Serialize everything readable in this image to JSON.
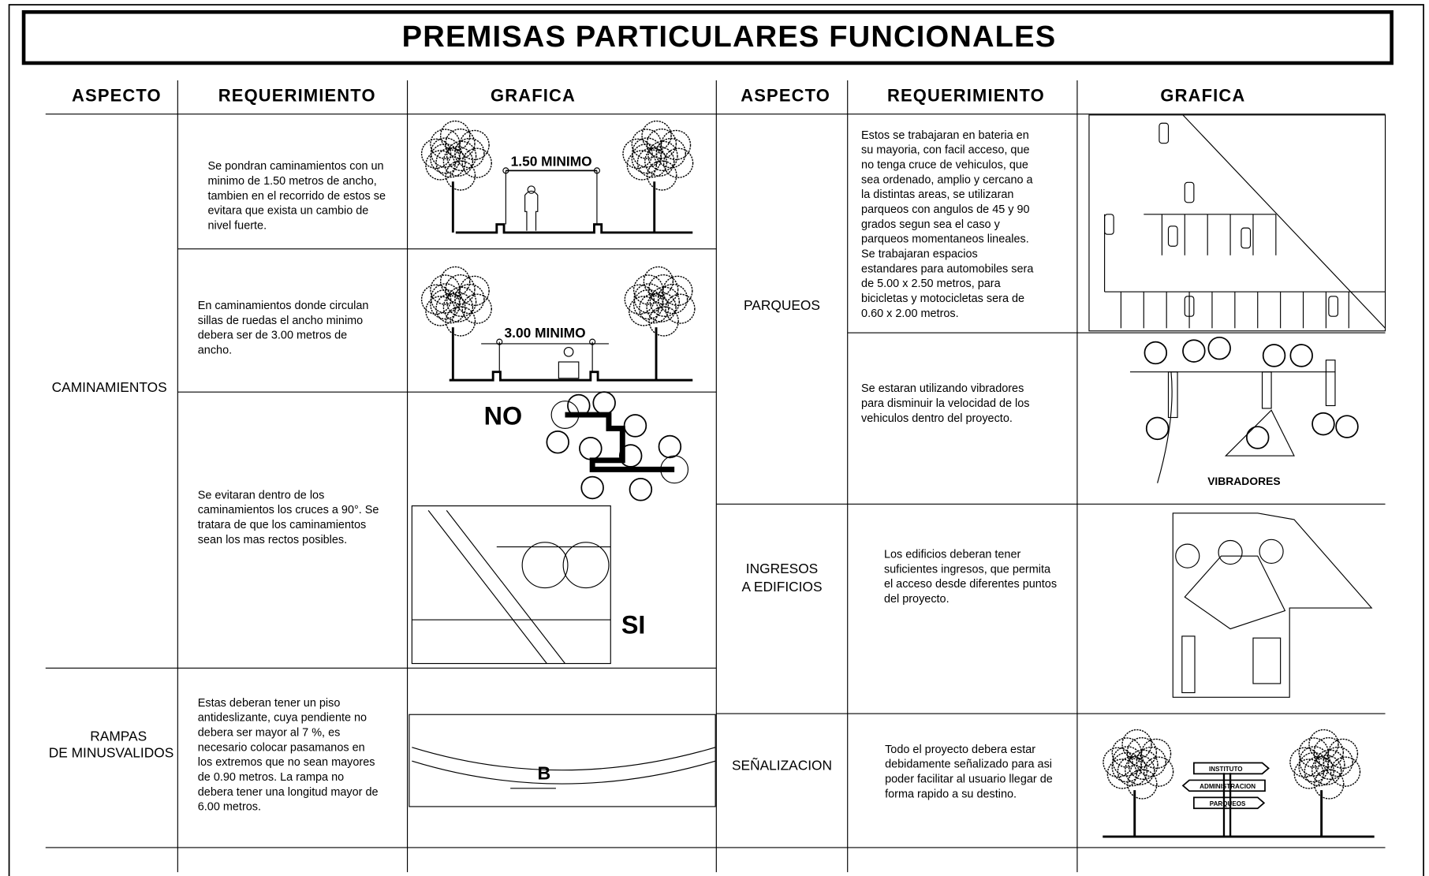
{
  "title": "PREMISAS PARTICULARES FUNCIONALES",
  "left": {
    "headers": [
      "ASPECTO",
      "REQUERIMIENTO",
      "GRAFICA"
    ],
    "groups": [
      {
        "aspect": [
          "CAMINAMIENTOS"
        ],
        "rows": [
          {
            "requirement": [
              "Se pondran caminamientos con un",
              "minimo de 1.50 metros de ancho,",
              "tambien en el recorrido de estos se",
              "evitara que exista un cambio de",
              "nivel fuerte."
            ],
            "graphic_labels": [
              "1.50 MINIMO"
            ]
          },
          {
            "requirement": [
              "En caminamientos donde circulan",
              "sillas de ruedas el ancho minimo",
              "debera ser de 3.00 metros de",
              "ancho."
            ],
            "graphic_labels": [
              "3.00 MINIMO"
            ]
          },
          {
            "requirement": [
              "Se evitaran dentro de los",
              "caminamientos los cruces a 90°. Se",
              "tratara de que los caminamientos",
              "sean los mas rectos posibles."
            ],
            "graphic_labels": [
              "NO",
              "SI"
            ]
          }
        ]
      },
      {
        "aspect": [
          "RAMPAS",
          "DE MINUSVALIDOS"
        ],
        "rows": [
          {
            "requirement": [
              "Estas deberan tener un piso",
              "antideslizante, cuya pendiente no",
              "debera ser mayor al 7 %, es",
              "necesario colocar pasamanos en",
              "los extremos que no sean mayores",
              "de 0.90 metros. La rampa no",
              "debera tener una longitud mayor de",
              "6.00 metros."
            ],
            "graphic_labels": [
              "B"
            ]
          }
        ]
      }
    ]
  },
  "right": {
    "headers": [
      "ASPECTO",
      "REQUERIMIENTO",
      "GRAFICA"
    ],
    "groups": [
      {
        "aspect": [
          "PARQUEOS"
        ],
        "rows": [
          {
            "requirement": [
              "Estos se trabajaran en bateria en",
              "su mayoria, con facil acceso, que",
              "no tenga cruce de vehiculos, que",
              "sea ordenado, amplio y cercano a",
              "la distintas areas, se utilizaran",
              "parqueos con angulos de 45 y 90",
              "grados segun sea el caso y",
              "parqueos momentaneos lineales.",
              "Se trabajaran espacios",
              "estandares para automobiles sera",
              "de 5.00 x 2.50 metros, para",
              "bicicletas y motocicletas sera de",
              "0.60 x 2.00 metros."
            ],
            "graphic_labels": []
          },
          {
            "requirement": [
              "Se estaran utilizando vibradores",
              "para disminuir la velocidad de los",
              "vehiculos dentro del proyecto."
            ],
            "graphic_labels": [
              "VIBRADORES"
            ]
          }
        ]
      },
      {
        "aspect": [
          "INGRESOS",
          "A EDIFICIOS"
        ],
        "rows": [
          {
            "requirement": [
              "Los edificios deberan tener",
              "suficientes ingresos, que permita",
              "el acceso desde diferentes puntos",
              "del proyecto."
            ],
            "graphic_labels": []
          }
        ]
      },
      {
        "aspect": [
          "SEÑALIZACION"
        ],
        "rows": [
          {
            "requirement": [
              "Todo el proyecto debera estar",
              "debidamente señalizado para asi",
              "poder facilitar al usuario llegar de",
              "forma rapido a su destino."
            ],
            "graphic_labels": [
              "INSTITUTO",
              "ADMINISTRACION",
              "PARQUEOS"
            ]
          }
        ]
      }
    ]
  }
}
